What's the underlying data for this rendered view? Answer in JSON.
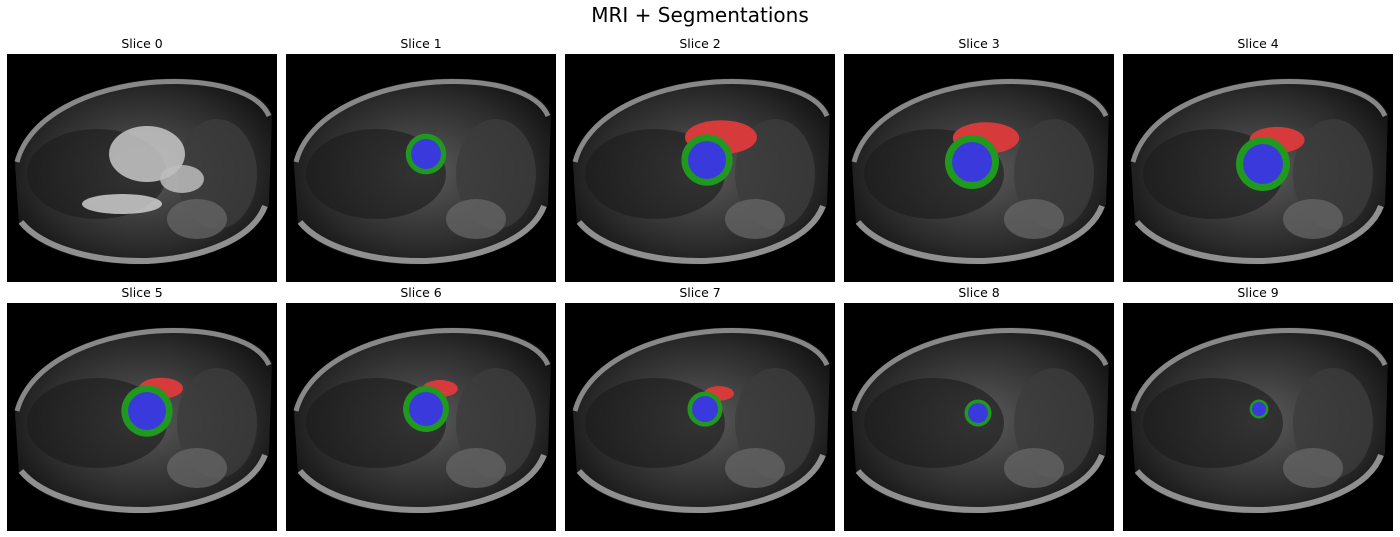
{
  "figure": {
    "title": "MRI + Segmentations"
  },
  "panels": [
    {
      "title": "Slice 0",
      "has_lv": false,
      "has_myo": false,
      "has_rv": false,
      "view": "long-axis"
    },
    {
      "title": "Slice 1",
      "has_lv": true,
      "has_myo": true,
      "has_rv": false,
      "lv_size": 0.75
    },
    {
      "title": "Slice 2",
      "has_lv": true,
      "has_myo": true,
      "has_rv": true,
      "lv_size": 0.95,
      "rv_size": 1.0
    },
    {
      "title": "Slice 3",
      "has_lv": true,
      "has_myo": true,
      "has_rv": true,
      "lv_size": 1.0,
      "rv_size": 0.9
    },
    {
      "title": "Slice 4",
      "has_lv": true,
      "has_myo": true,
      "has_rv": true,
      "lv_size": 1.0,
      "rv_size": 0.7
    },
    {
      "title": "Slice 5",
      "has_lv": true,
      "has_myo": true,
      "has_rv": true,
      "lv_size": 0.95,
      "rv_size": 0.5
    },
    {
      "title": "Slice 6",
      "has_lv": true,
      "has_myo": true,
      "has_rv": true,
      "lv_size": 0.85,
      "rv_size": 0.35
    },
    {
      "title": "Slice 7",
      "has_lv": true,
      "has_myo": true,
      "has_rv": true,
      "lv_size": 0.65,
      "rv_size": 0.25
    },
    {
      "title": "Slice 8",
      "has_lv": true,
      "has_myo": true,
      "has_rv": false,
      "lv_size": 0.5
    },
    {
      "title": "Slice 9",
      "has_lv": true,
      "has_myo": true,
      "has_rv": false,
      "lv_size": 0.35
    }
  ],
  "legend_colors": {
    "lv_blood_pool": "#3a3adc",
    "myocardium": "#1f9a1f",
    "right_ventricle": "#d63a3a",
    "background": "#000000"
  }
}
